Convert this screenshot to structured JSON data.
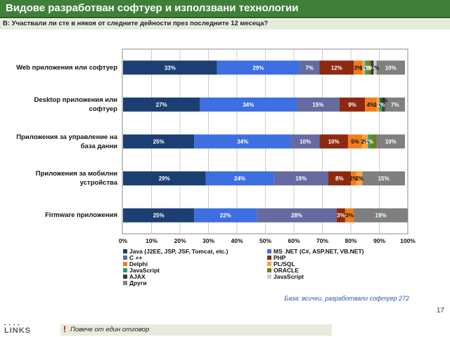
{
  "header": {
    "title": "Видове разработван софтуер и използвани технологии",
    "question": "В: Участвали ли сте в някоя от следните дейности през последните 12 месеца?"
  },
  "chart_data": {
    "type": "bar",
    "stacked": true,
    "orientation": "horizontal",
    "categories": [
      [
        "Web приложения или софтуер"
      ],
      [
        "Desktop приложения или",
        "софтуер"
      ],
      [
        "Приложения за управление на",
        "база данни"
      ],
      [
        "Приложения за мобилни",
        "устройства"
      ],
      [
        "Firmware приложения"
      ]
    ],
    "xlim": [
      0,
      100
    ],
    "xticks": [
      "0%",
      "10%",
      "20%",
      "30%",
      "40%",
      "50%",
      "60%",
      "70%",
      "80%",
      "90%",
      "100%"
    ],
    "grid": true,
    "legend_position": "bottom",
    "series": [
      {
        "name": "Java (J2EE, JSP, JSF, Tomcat, etc.)",
        "color": "#1c3f73",
        "values": [
          33,
          27,
          25,
          29,
          25
        ],
        "labels": [
          "33%",
          "27%",
          "25%",
          "29%",
          "25%"
        ]
      },
      {
        "name": "MS .NET (C#, ASP.NET, VB.NET)",
        "color": "#3d6fe0",
        "values": [
          29,
          34,
          34,
          24,
          22
        ],
        "labels": [
          "29%",
          "34%",
          "34%",
          "24%",
          "22%"
        ]
      },
      {
        "name": "C ++",
        "color": "#656aa0",
        "values": [
          7,
          15,
          10,
          19,
          28
        ],
        "labels": [
          "7%",
          "15%",
          "10%",
          "19%",
          "28%"
        ]
      },
      {
        "name": "PHP",
        "color": "#8c2a10",
        "values": [
          12,
          9,
          10,
          8,
          3
        ],
        "labels": [
          "12%",
          "9%",
          "10%",
          "8%",
          "3%"
        ]
      },
      {
        "name": "Delphi",
        "color": "#f07c1e",
        "values": [
          3,
          4,
          5,
          2,
          3
        ],
        "labels": [
          "3%",
          "4%",
          "5%",
          "2%",
          "3%"
        ]
      },
      {
        "name": "PL/SQL",
        "color": "#f8a33c",
        "values": [
          1,
          1,
          2,
          2,
          0
        ],
        "labels": [
          "1%",
          "1%",
          "2%",
          "2%",
          ""
        ]
      },
      {
        "name": "JavaScript",
        "color": "#2c9a73",
        "values": [
          1,
          1,
          1,
          0,
          0
        ],
        "labels": [
          "1%",
          "1%",
          "1%",
          "",
          ""
        ]
      },
      {
        "name": "ORACLE",
        "color": "#6b7f1a",
        "values": [
          1,
          0,
          2,
          0,
          0
        ],
        "labels": [
          "1%",
          "",
          "",
          "",
          ""
        ]
      },
      {
        "name": "AJAX",
        "color": "#3a3a3a",
        "values": [
          1,
          1,
          0,
          0,
          0
        ],
        "labels": [
          "1%",
          "",
          "",
          "",
          ""
        ]
      },
      {
        "name": "JavaScript",
        "color": "#c8ccd4",
        "values": [
          1,
          0,
          0,
          0,
          0
        ],
        "labels": [
          "1%",
          "",
          "",
          "",
          ""
        ]
      },
      {
        "name": "Други",
        "color": "#7f7f7f",
        "values": [
          10,
          7,
          10,
          15,
          19
        ],
        "labels": [
          "10%",
          "7%",
          "10%",
          "15%",
          "19%"
        ]
      }
    ],
    "extra_labels": [
      {
        "bar": 1,
        "text": "1%"
      }
    ]
  },
  "base_note": "База: всички, разработвали софтуер 272",
  "footer": {
    "exclamation": "!",
    "note": "Повече от един отговор",
    "page_number": "17",
    "logo_text": "LINKS"
  }
}
